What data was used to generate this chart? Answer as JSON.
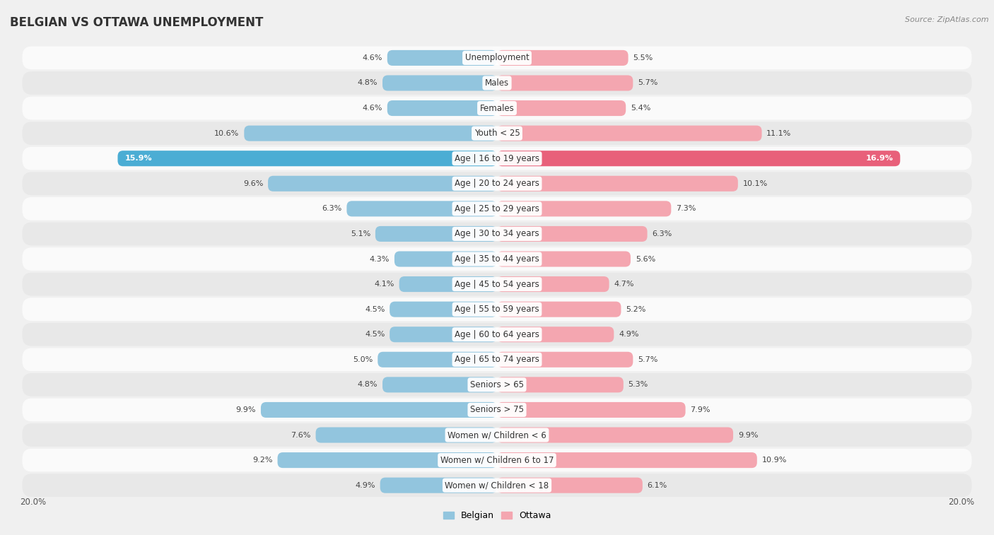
{
  "title": "BELGIAN VS OTTAWA UNEMPLOYMENT",
  "source": "Source: ZipAtlas.com",
  "categories": [
    "Unemployment",
    "Males",
    "Females",
    "Youth < 25",
    "Age | 16 to 19 years",
    "Age | 20 to 24 years",
    "Age | 25 to 29 years",
    "Age | 30 to 34 years",
    "Age | 35 to 44 years",
    "Age | 45 to 54 years",
    "Age | 55 to 59 years",
    "Age | 60 to 64 years",
    "Age | 65 to 74 years",
    "Seniors > 65",
    "Seniors > 75",
    "Women w/ Children < 6",
    "Women w/ Children 6 to 17",
    "Women w/ Children < 18"
  ],
  "belgian": [
    4.6,
    4.8,
    4.6,
    10.6,
    15.9,
    9.6,
    6.3,
    5.1,
    4.3,
    4.1,
    4.5,
    4.5,
    5.0,
    4.8,
    9.9,
    7.6,
    9.2,
    4.9
  ],
  "ottawa": [
    5.5,
    5.7,
    5.4,
    11.1,
    16.9,
    10.1,
    7.3,
    6.3,
    5.6,
    4.7,
    5.2,
    4.9,
    5.7,
    5.3,
    7.9,
    9.9,
    10.9,
    6.1
  ],
  "belgian_color": "#92c5de",
  "ottawa_color": "#f4a6b0",
  "highlight_belgian_color": "#4badd4",
  "highlight_ottawa_color": "#e8607a",
  "highlight_row": 4,
  "bg_color": "#f0f0f0",
  "row_bg_light": "#fafafa",
  "row_bg_dark": "#e8e8e8",
  "bar_height": 0.62,
  "axis_max": 20.0,
  "legend_belgian": "Belgian",
  "legend_ottawa": "Ottawa",
  "title_fontsize": 12,
  "label_fontsize": 8.5,
  "source_fontsize": 8,
  "value_fontsize": 8
}
